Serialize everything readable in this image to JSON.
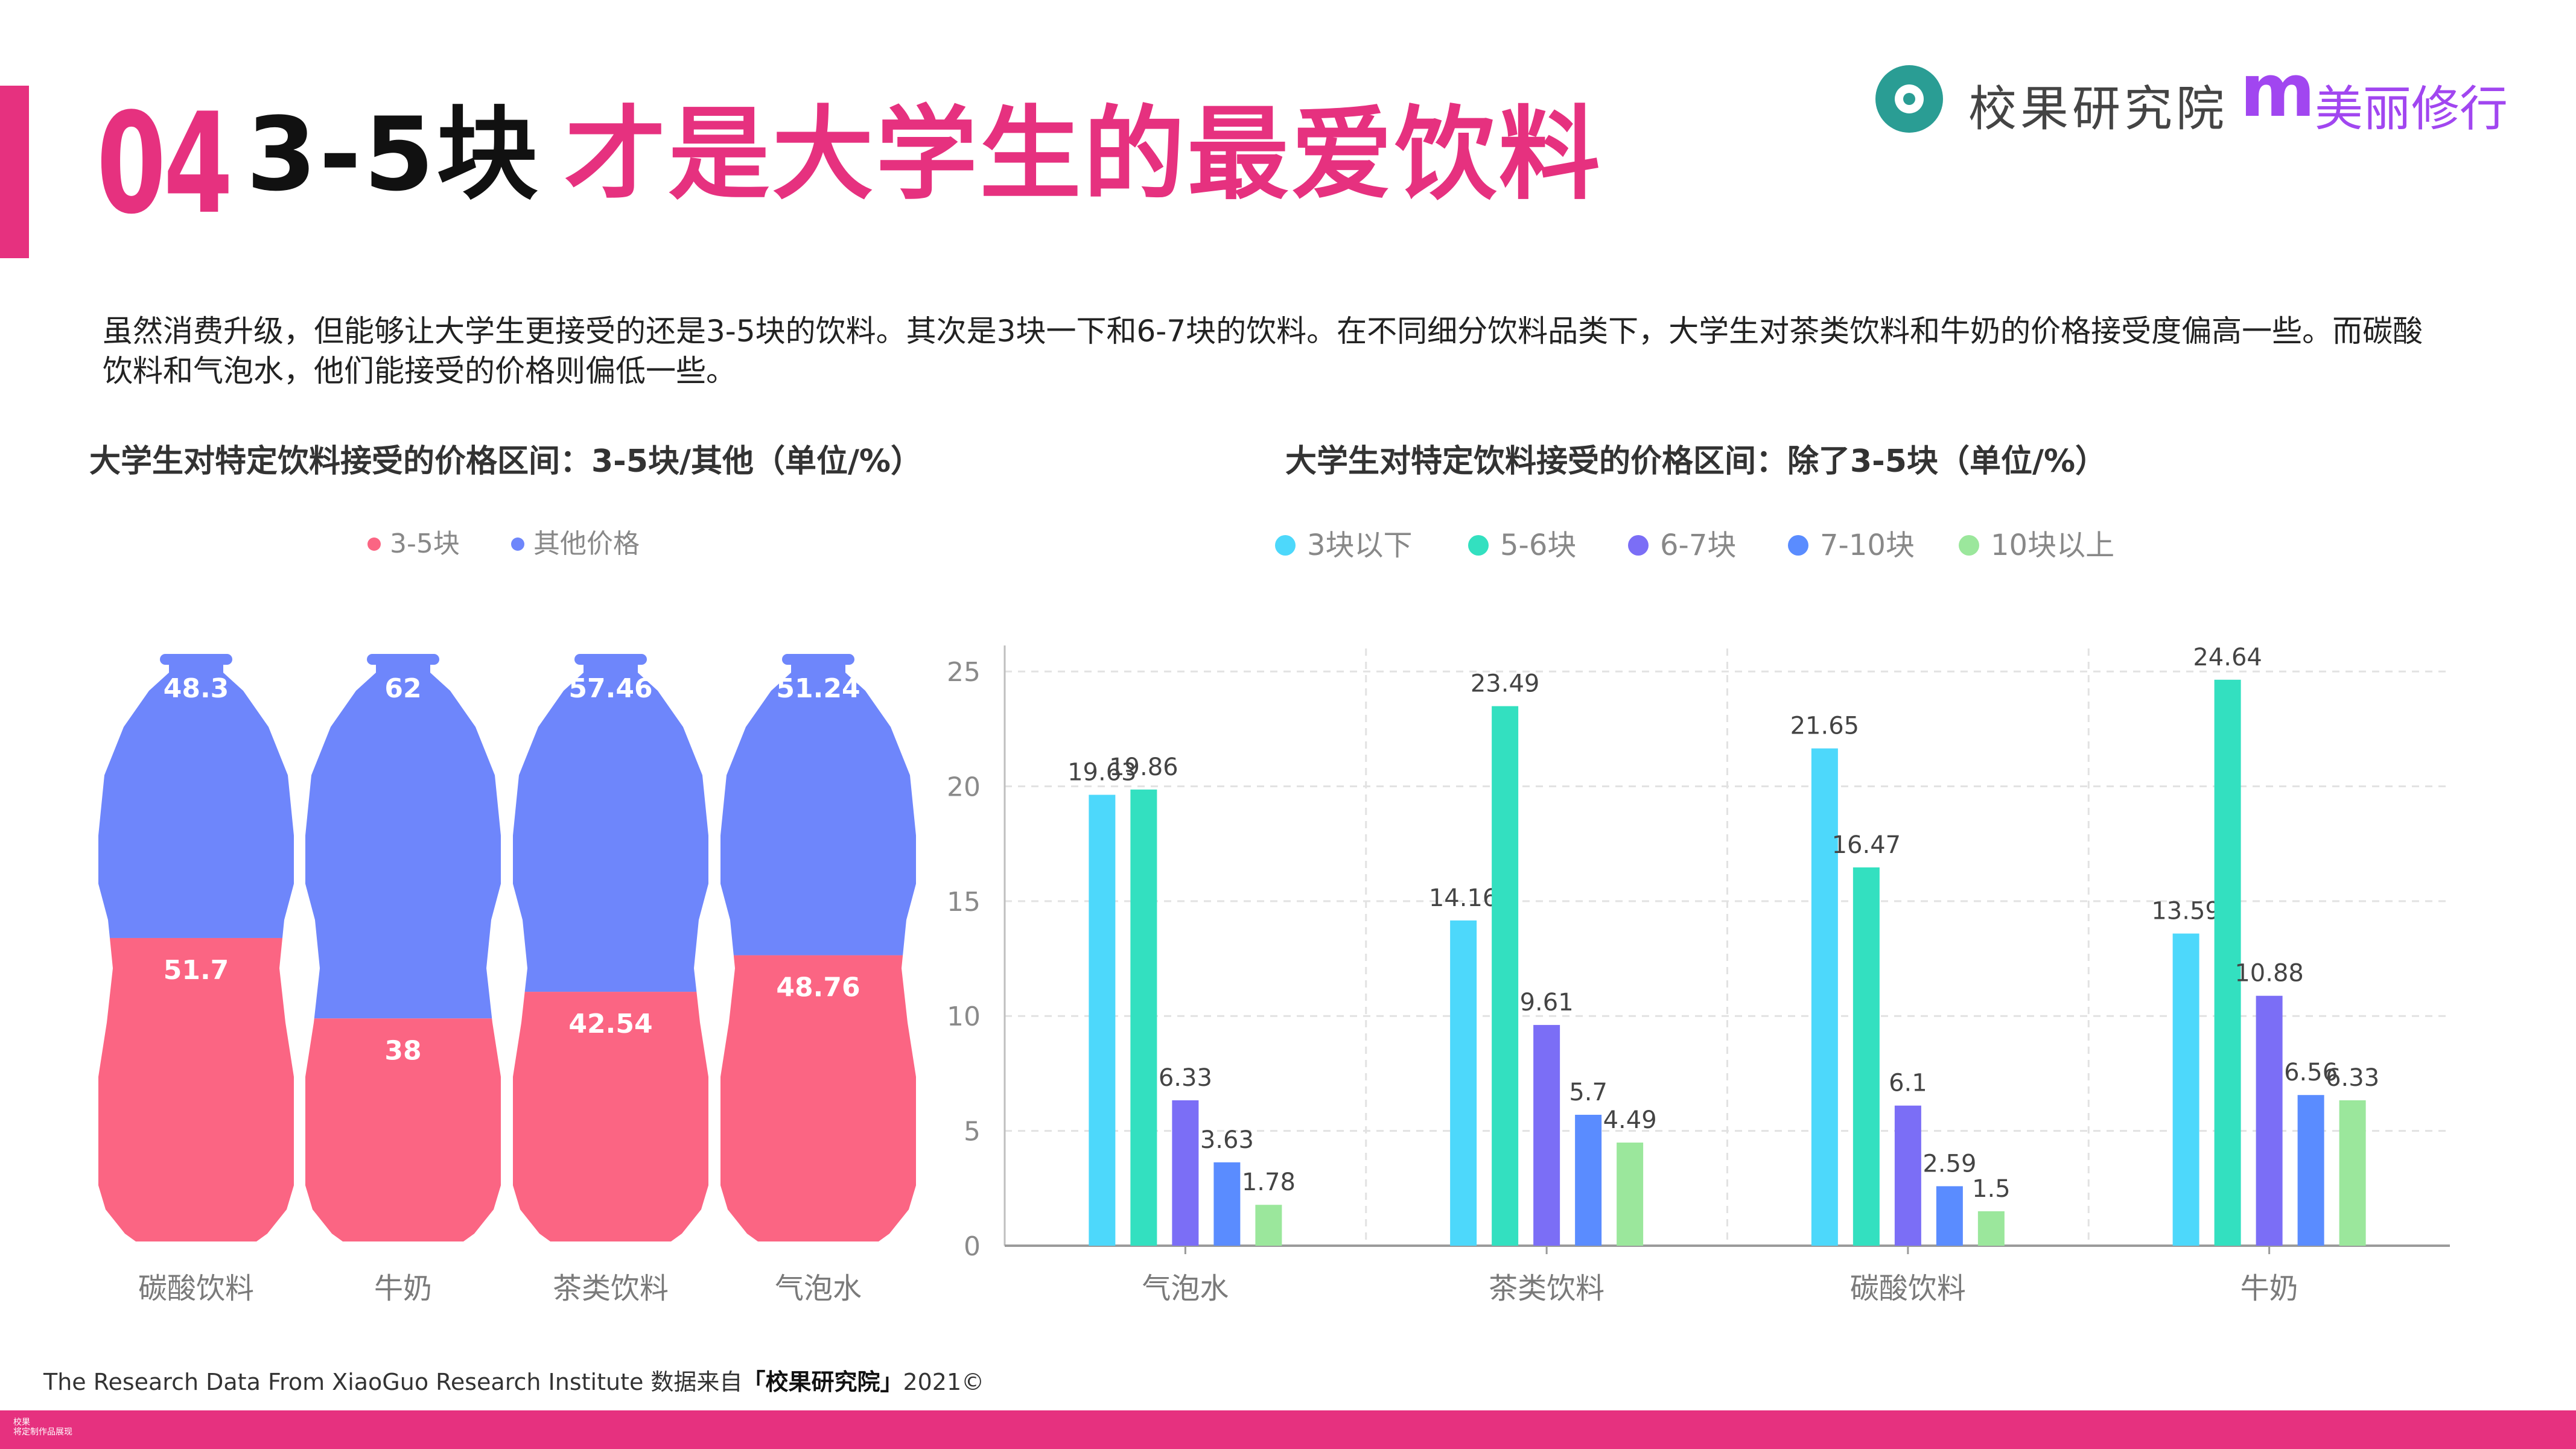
{
  "header": {
    "number": "04",
    "title_black": "3-5块",
    "title_pink": "才是大学生的最爱饮料"
  },
  "logo": {
    "brand1": "校果研究院",
    "brand2_mark": "m",
    "brand2": "美丽修行"
  },
  "intro_text": "虽然消费升级，但能够让大学生更接受的还是3-5块的饮料。其次是3块一下和6-7块的饮料。在不同细分饮料品类下，大学生对茶类饮料和牛奶的价格接受度偏高一些。而碳酸饮料和气泡水，他们能接受的价格则偏低一些。",
  "colors": {
    "accent": "#e6317f",
    "brand_teal": "#2a9d94",
    "brand_purple": "#a146f0",
    "bottle_top": "#6e86fb",
    "bottle_bottom": "#fb6583"
  },
  "footer": {
    "text_prefix": "The Research Data From XiaoGuo Research Institute 数据来自",
    "text_brand": "「校果研究院」",
    "text_suffix": "2021©",
    "mini_line1": "校果",
    "mini_line2": "将定制作品展现"
  },
  "chart_data": [
    {
      "type": "bar",
      "style": "bottle-stacked-percent",
      "title": "大学生对特定饮料接受的价格区间：3-5块/其他（单位/%）",
      "categories": [
        "碳酸饮料",
        "牛奶",
        "茶类饮料",
        "气泡水"
      ],
      "series": [
        {
          "name": "3-5块",
          "color": "#fb6583",
          "values": [
            51.7,
            38,
            42.54,
            48.76
          ]
        },
        {
          "name": "其他价格",
          "color": "#6e86fb",
          "values": [
            48.3,
            62,
            57.46,
            51.24
          ]
        }
      ],
      "ylim": [
        0,
        100
      ],
      "legend": "top-center"
    },
    {
      "type": "bar",
      "title": "大学生对特定饮料接受的价格区间：除了3-5块（单位/%）",
      "categories": [
        "气泡水",
        "茶类饮料",
        "碳酸饮料",
        "牛奶"
      ],
      "series": [
        {
          "name": "3块以下",
          "color": "#4dd8fb",
          "values": [
            19.63,
            14.16,
            21.65,
            13.59
          ]
        },
        {
          "name": "5-6块",
          "color": "#33e0c0",
          "values": [
            19.86,
            23.49,
            16.47,
            24.64
          ]
        },
        {
          "name": "6-7块",
          "color": "#7b6ef6",
          "values": [
            6.33,
            9.61,
            6.1,
            10.88
          ]
        },
        {
          "name": "7-10块",
          "color": "#5a8cff",
          "values": [
            3.63,
            5.7,
            2.59,
            6.56
          ]
        },
        {
          "name": "10块以上",
          "color": "#9be79c",
          "values": [
            1.78,
            4.49,
            1.5,
            6.33
          ]
        }
      ],
      "yticks": [
        0,
        5,
        10,
        15,
        20,
        25
      ],
      "ylim": [
        0,
        26
      ],
      "grid": true,
      "legend": "top-center"
    }
  ]
}
